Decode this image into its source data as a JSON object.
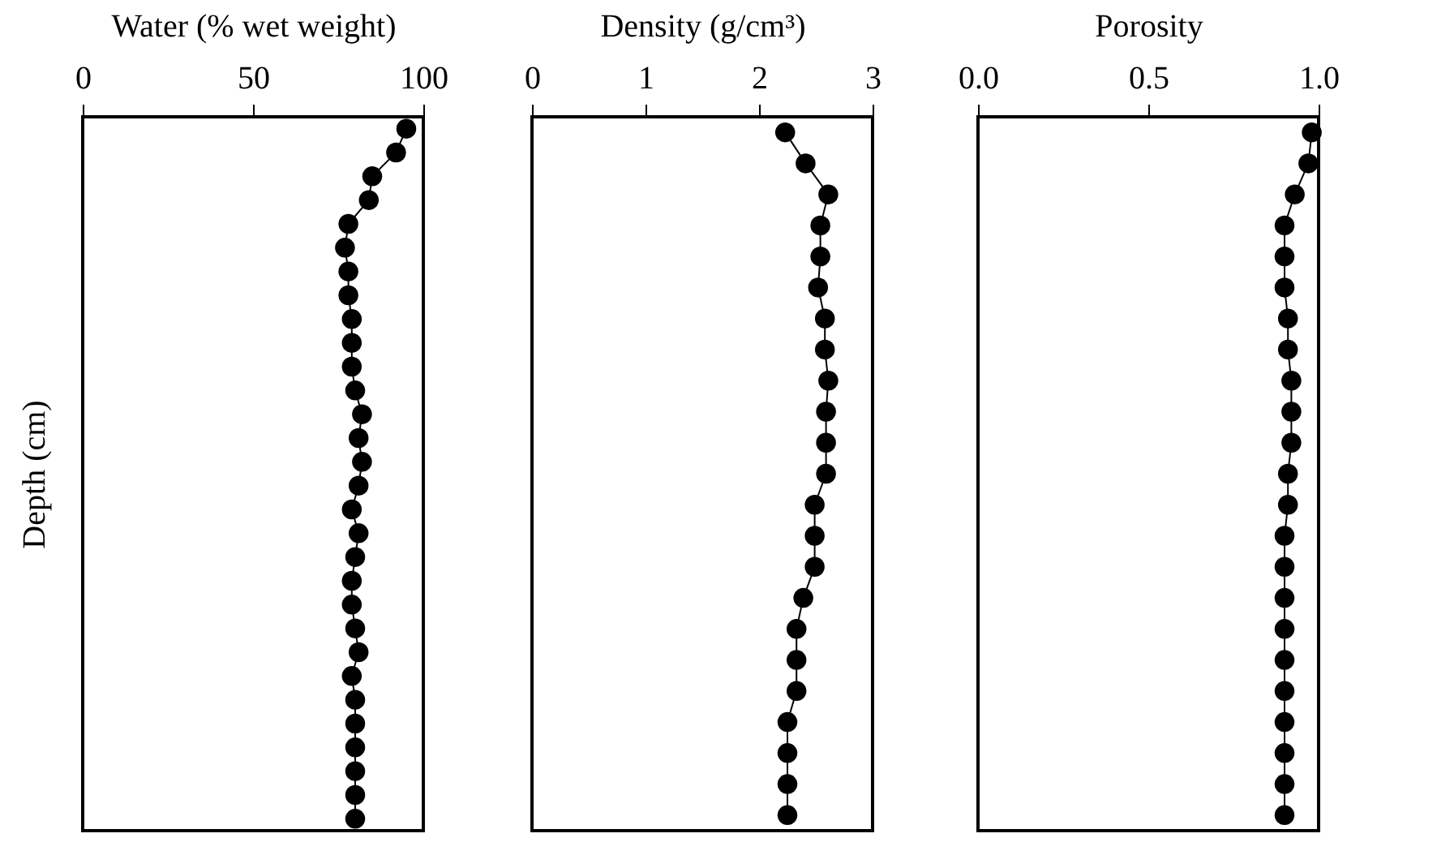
{
  "chart_data": [
    {
      "type": "line",
      "orientation": "horizontal",
      "marker": "circle",
      "line_style": "solid",
      "tick_labels": "x",
      "xlabel": "Water (% wet weight)",
      "ylabel": "Depth (cm)",
      "color": "#000000",
      "categories": [
        null,
        null,
        null,
        null,
        null,
        null,
        null,
        null,
        null,
        null,
        null,
        null,
        null,
        null,
        null,
        null,
        null,
        null,
        null,
        null,
        null,
        null,
        null,
        null,
        null,
        null,
        null,
        null,
        null,
        null
      ],
      "values": [
        95,
        92,
        85,
        84,
        78,
        77,
        78,
        78,
        79,
        79,
        79,
        80,
        82,
        81,
        82,
        81,
        79,
        81,
        80,
        79,
        79,
        80,
        81,
        79,
        80,
        80,
        80,
        80,
        80,
        80
      ],
      "xlim": [
        0,
        100
      ],
      "xticks": [
        0,
        50,
        100
      ]
    },
    {
      "type": "line",
      "orientation": "horizontal",
      "marker": "circle",
      "line_style": "solid",
      "tick_labels": "x",
      "xlabel": "Density (g/cm³)",
      "color": "#000000",
      "categories": [
        null,
        null,
        null,
        null,
        null,
        null,
        null,
        null,
        null,
        null,
        null,
        null,
        null,
        null,
        null,
        null,
        null,
        null,
        null,
        null,
        null,
        null,
        null
      ],
      "values": [
        2.23,
        2.41,
        2.61,
        2.54,
        2.54,
        2.52,
        2.58,
        2.58,
        2.61,
        2.59,
        2.59,
        2.59,
        2.49,
        2.49,
        2.49,
        2.39,
        2.33,
        2.33,
        2.33,
        2.25,
        2.25,
        2.25,
        2.25
      ],
      "xlim": [
        0,
        3
      ],
      "xticks": [
        0,
        1,
        2,
        3
      ]
    },
    {
      "type": "line",
      "orientation": "horizontal",
      "marker": "circle",
      "line_style": "solid",
      "tick_labels": "x",
      "xlabel": "Porosity",
      "color": "#000000",
      "categories": [
        null,
        null,
        null,
        null,
        null,
        null,
        null,
        null,
        null,
        null,
        null,
        null,
        null,
        null,
        null,
        null,
        null,
        null,
        null,
        null,
        null,
        null,
        null
      ],
      "values": [
        0.98,
        0.97,
        0.93,
        0.9,
        0.9,
        0.9,
        0.91,
        0.91,
        0.92,
        0.92,
        0.92,
        0.91,
        0.91,
        0.9,
        0.9,
        0.9,
        0.9,
        0.9,
        0.9,
        0.9,
        0.9,
        0.9,
        0.9
      ],
      "xlim": [
        0,
        1
      ],
      "xticks": [
        {
          "value": 0,
          "label": "0.0"
        },
        {
          "value": 0.5,
          "label": "0.5"
        },
        {
          "value": 1,
          "label": "1.0"
        }
      ]
    }
  ]
}
